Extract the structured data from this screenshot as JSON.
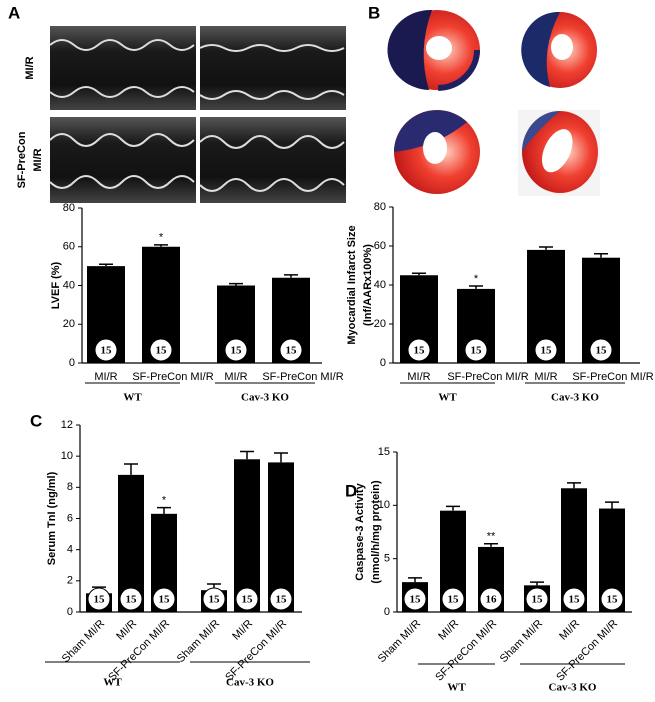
{
  "panel_labels": [
    "A",
    "B",
    "C",
    "D"
  ],
  "image_row_labels": [
    [
      "MI/R"
    ],
    [
      "SF-PreCon",
      "MI/R"
    ]
  ],
  "chart_data": [
    {
      "type": "bar",
      "ylabel": [
        "LVEF (%)"
      ],
      "ylim": [
        0,
        80
      ],
      "yticks": [
        0,
        20,
        40,
        60,
        80
      ],
      "color": "#000000",
      "categories": [
        "MI/R",
        "SF-PreCon MI/R",
        "MI/R",
        "SF-PreCon MI/R"
      ],
      "values": [
        50,
        60,
        40,
        44
      ],
      "errors": [
        1,
        1,
        1,
        1.5
      ],
      "n_labels": [
        15,
        15,
        15,
        15
      ],
      "significance": [
        null,
        "*",
        null,
        null
      ],
      "groups": [
        "WT",
        "Cav-3 KO"
      ]
    },
    {
      "type": "bar",
      "ylabel": [
        "Myocardial Infarct Size",
        "(Inf/AARx100%)"
      ],
      "ylim": [
        0,
        80
      ],
      "yticks": [
        0,
        20,
        40,
        60,
        80
      ],
      "color": "#000000",
      "categories": [
        "MI/R",
        "SF-PreCon MI/R",
        "MI/R",
        "SF-PreCon MI/R"
      ],
      "values": [
        45,
        38,
        58,
        54
      ],
      "errors": [
        1,
        1.5,
        1.5,
        2
      ],
      "n_labels": [
        15,
        15,
        15,
        15
      ],
      "significance": [
        null,
        "*",
        null,
        null
      ],
      "groups": [
        "WT",
        "Cav-3 KO"
      ]
    },
    {
      "type": "bar",
      "ylabel": [
        "Serum TnI (ng/ml)"
      ],
      "ylim": [
        0,
        12
      ],
      "yticks": [
        0,
        2,
        4,
        6,
        8,
        10,
        12
      ],
      "color": "#000000",
      "categories": [
        "Sham MI/R",
        "MI/R",
        "SF-PreCon MI/R",
        "Sham MI/R",
        "MI/R",
        "SF-PreCon MI/R"
      ],
      "values": [
        1.2,
        8.8,
        6.3,
        1.4,
        9.8,
        9.6
      ],
      "errors": [
        0.4,
        0.7,
        0.4,
        0.4,
        0.5,
        0.6
      ],
      "n_labels": [
        15,
        15,
        15,
        15,
        15,
        15
      ],
      "significance": [
        null,
        null,
        "*",
        null,
        null,
        null
      ],
      "groups": [
        "WT",
        "Cav-3 KO"
      ]
    },
    {
      "type": "bar",
      "ylabel": [
        "Caspase-3  Activity",
        "(nmol/h/mg protein)"
      ],
      "ylim": [
        0,
        15
      ],
      "yticks": [
        0,
        5,
        10,
        15
      ],
      "color": "#000000",
      "categories": [
        "Sham MI/R",
        "MI/R",
        "SF-PreCon MI/R",
        "Sham MI/R",
        "MI/R",
        "SF-PreCon MI/R"
      ],
      "values": [
        2.8,
        9.5,
        6.1,
        2.5,
        11.6,
        9.7
      ],
      "errors": [
        0.4,
        0.4,
        0.3,
        0.3,
        0.5,
        0.6
      ],
      "n_labels": [
        15,
        15,
        16,
        15,
        15,
        15
      ],
      "significance": [
        null,
        null,
        "**",
        null,
        null,
        null
      ],
      "groups": [
        "WT",
        "Cav-3 KO"
      ]
    }
  ]
}
